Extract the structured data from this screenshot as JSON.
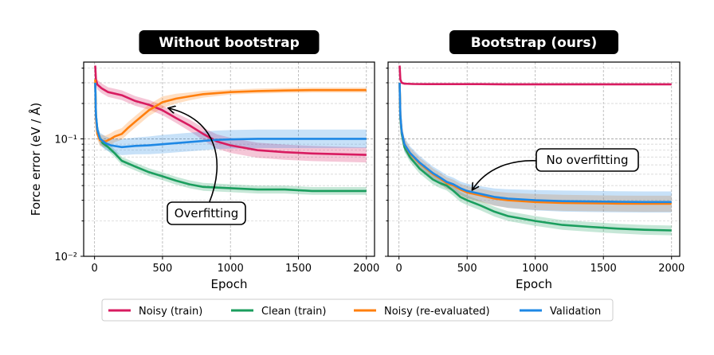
{
  "chart_data": [
    {
      "type": "line",
      "title": "Without bootstrap",
      "xlabel": "Epoch",
      "ylabel": "Force error (eV / Å)",
      "yscale": "log",
      "xlim": [
        -80,
        2060
      ],
      "ylim": [
        0.01,
        0.45
      ],
      "xticks": [
        0,
        500,
        1000,
        1500,
        2000
      ],
      "xtick_labels": [
        "0",
        "500",
        "1000",
        "1500",
        "2000"
      ],
      "ytick_labels": [
        {
          "value": 0.1,
          "label": "10⁻¹"
        },
        {
          "value": 0.01,
          "label": "10⁻²"
        }
      ],
      "grid": true,
      "series": [
        {
          "name": "Noisy (train)",
          "color": "#d81b60",
          "x": [
            5,
            10,
            20,
            50,
            100,
            200,
            300,
            400,
            500,
            600,
            700,
            800,
            900,
            1000,
            1200,
            1400,
            1600,
            1800,
            2000
          ],
          "y": [
            0.42,
            0.32,
            0.29,
            0.27,
            0.25,
            0.235,
            0.21,
            0.195,
            0.175,
            0.15,
            0.13,
            0.11,
            0.095,
            0.088,
            0.08,
            0.077,
            0.075,
            0.074,
            0.073
          ],
          "band": [
            0.1,
            0.1,
            0.1,
            0.1,
            0.1,
            0.1,
            0.1,
            0.1,
            0.1,
            0.1,
            0.12,
            0.13,
            0.15,
            0.16,
            0.16,
            0.16,
            0.16,
            0.16,
            0.16
          ]
        },
        {
          "name": "Clean (train)",
          "color": "#1b9e5e",
          "x": [
            5,
            10,
            20,
            40,
            60,
            100,
            150,
            200,
            300,
            400,
            500,
            600,
            700,
            800,
            1000,
            1200,
            1400,
            1600,
            1800,
            2000
          ],
          "y": [
            0.3,
            0.16,
            0.12,
            0.1,
            0.092,
            0.085,
            0.075,
            0.065,
            0.058,
            0.052,
            0.048,
            0.044,
            0.041,
            0.039,
            0.038,
            0.037,
            0.037,
            0.036,
            0.036,
            0.036
          ],
          "band": [
            0.08,
            0.08,
            0.08,
            0.08,
            0.08,
            0.08,
            0.08,
            0.08,
            0.08,
            0.08,
            0.08,
            0.08,
            0.08,
            0.08,
            0.08,
            0.08,
            0.08,
            0.08,
            0.08,
            0.08
          ]
        },
        {
          "name": "Noisy (re-evaluated)",
          "color": "#ff7f0e",
          "x": [
            5,
            10,
            20,
            40,
            80,
            120,
            150,
            200,
            250,
            300,
            400,
            500,
            600,
            700,
            800,
            1000,
            1200,
            1400,
            1600,
            1800,
            2000
          ],
          "y": [
            0.32,
            0.15,
            0.11,
            0.097,
            0.095,
            0.1,
            0.105,
            0.11,
            0.125,
            0.14,
            0.175,
            0.205,
            0.22,
            0.23,
            0.24,
            0.25,
            0.255,
            0.258,
            0.26,
            0.26,
            0.26
          ],
          "band": [
            0.12,
            0.12,
            0.12,
            0.12,
            0.12,
            0.12,
            0.12,
            0.12,
            0.12,
            0.12,
            0.12,
            0.12,
            0.1,
            0.08,
            0.07,
            0.05,
            0.05,
            0.05,
            0.05,
            0.05,
            0.05
          ]
        },
        {
          "name": "Validation",
          "color": "#1e88e5",
          "x": [
            5,
            10,
            20,
            40,
            80,
            120,
            200,
            300,
            400,
            500,
            600,
            700,
            800,
            900,
            1000,
            1200,
            1400,
            1600,
            1800,
            2000
          ],
          "y": [
            0.3,
            0.16,
            0.12,
            0.1,
            0.092,
            0.088,
            0.085,
            0.087,
            0.088,
            0.09,
            0.092,
            0.094,
            0.096,
            0.098,
            0.099,
            0.1,
            0.1,
            0.1,
            0.1,
            0.1
          ],
          "band": [
            0.12,
            0.12,
            0.12,
            0.13,
            0.14,
            0.15,
            0.17,
            0.18,
            0.19,
            0.2,
            0.2,
            0.2,
            0.2,
            0.2,
            0.2,
            0.2,
            0.2,
            0.2,
            0.2,
            0.2
          ]
        }
      ],
      "annotations": [
        {
          "text": "Overfitting",
          "arrow_to": {
            "x": 540,
            "y": 0.21
          }
        }
      ]
    },
    {
      "type": "line",
      "title": "Bootstrap (ours)",
      "xlabel": "Epoch",
      "ylabel": "",
      "yscale": "log",
      "xlim": [
        -80,
        2060
      ],
      "ylim": [
        0.01,
        0.45
      ],
      "xticks": [
        0,
        500,
        1000,
        1500,
        2000
      ],
      "xtick_labels": [
        "0",
        "500",
        "1000",
        "1500",
        "2000"
      ],
      "ytick_labels": [],
      "grid": true,
      "series": [
        {
          "name": "Noisy (train)",
          "color": "#d81b60",
          "x": [
            5,
            10,
            20,
            40,
            100,
            200,
            400,
            600,
            800,
            1000,
            1200,
            1400,
            1600,
            1800,
            2000
          ],
          "y": [
            0.42,
            0.32,
            0.3,
            0.295,
            0.293,
            0.292,
            0.292,
            0.292,
            0.291,
            0.291,
            0.291,
            0.291,
            0.291,
            0.291,
            0.291
          ],
          "band": [
            0.02,
            0.02,
            0.02,
            0.02,
            0.02,
            0.02,
            0.02,
            0.02,
            0.02,
            0.02,
            0.02,
            0.02,
            0.02,
            0.02,
            0.02
          ]
        },
        {
          "name": "Clean (train)",
          "color": "#1b9e5e",
          "x": [
            5,
            10,
            20,
            40,
            80,
            150,
            250,
            300,
            350,
            400,
            450,
            500,
            600,
            700,
            800,
            1000,
            1200,
            1400,
            1600,
            1800,
            2000
          ],
          "y": [
            0.3,
            0.15,
            0.11,
            0.085,
            0.07,
            0.056,
            0.045,
            0.042,
            0.04,
            0.036,
            0.032,
            0.03,
            0.027,
            0.024,
            0.022,
            0.02,
            0.0185,
            0.0178,
            0.0172,
            0.0168,
            0.0166
          ],
          "band": [
            0.1,
            0.1,
            0.1,
            0.1,
            0.1,
            0.1,
            0.1,
            0.1,
            0.1,
            0.1,
            0.1,
            0.1,
            0.1,
            0.1,
            0.1,
            0.1,
            0.1,
            0.1,
            0.1,
            0.1,
            0.1
          ]
        },
        {
          "name": "Noisy (re-evaluated)",
          "color": "#ff7f0e",
          "x": [
            5,
            10,
            20,
            40,
            80,
            150,
            250,
            300,
            350,
            400,
            450,
            500,
            600,
            700,
            800,
            1000,
            1200,
            1400,
            1600,
            1800,
            2000
          ],
          "y": [
            0.3,
            0.16,
            0.115,
            0.09,
            0.075,
            0.062,
            0.05,
            0.046,
            0.042,
            0.04,
            0.037,
            0.035,
            0.033,
            0.031,
            0.03,
            0.029,
            0.0285,
            0.0283,
            0.0281,
            0.028,
            0.028
          ],
          "band": [
            0.12,
            0.12,
            0.12,
            0.12,
            0.12,
            0.12,
            0.12,
            0.12,
            0.12,
            0.12,
            0.12,
            0.13,
            0.14,
            0.15,
            0.16,
            0.17,
            0.17,
            0.17,
            0.17,
            0.17,
            0.17
          ]
        },
        {
          "name": "Validation",
          "color": "#1e88e5",
          "x": [
            5,
            10,
            20,
            40,
            80,
            150,
            250,
            300,
            350,
            400,
            450,
            500,
            600,
            700,
            800,
            1000,
            1200,
            1400,
            1600,
            1800,
            2000
          ],
          "y": [
            0.3,
            0.16,
            0.115,
            0.09,
            0.076,
            0.063,
            0.051,
            0.047,
            0.043,
            0.041,
            0.038,
            0.036,
            0.034,
            0.032,
            0.031,
            0.03,
            0.0295,
            0.0293,
            0.0291,
            0.029,
            0.029
          ],
          "band": [
            0.14,
            0.14,
            0.14,
            0.14,
            0.14,
            0.14,
            0.14,
            0.14,
            0.14,
            0.14,
            0.14,
            0.15,
            0.16,
            0.18,
            0.2,
            0.22,
            0.23,
            0.23,
            0.23,
            0.23,
            0.23
          ]
        }
      ],
      "annotations": [
        {
          "text": "No overfitting",
          "arrow_to": {
            "x": 520,
            "y": 0.038
          }
        }
      ]
    }
  ],
  "legend": {
    "placement": "bottom-center",
    "entries": [
      {
        "label": "Noisy (train)",
        "color": "#d81b60"
      },
      {
        "label": "Clean (train)",
        "color": "#1b9e5e"
      },
      {
        "label": "Noisy (re-evaluated)",
        "color": "#ff7f0e"
      },
      {
        "label": "Validation",
        "color": "#1e88e5"
      }
    ]
  }
}
